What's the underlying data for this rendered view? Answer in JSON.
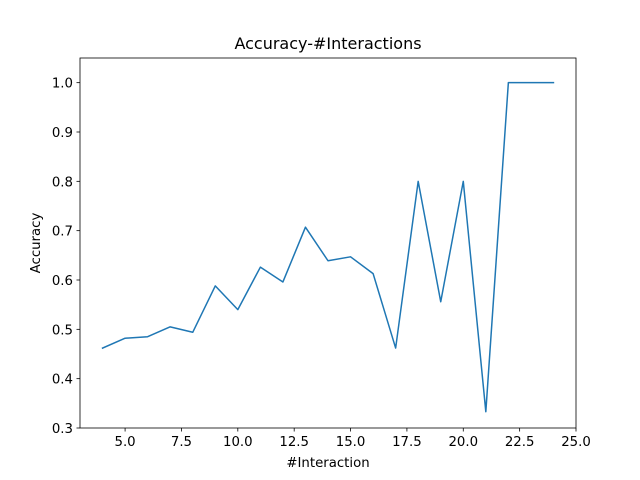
{
  "chart_data": {
    "type": "line",
    "title": "Accuracy-#Interactions",
    "xlabel": "#Interaction",
    "ylabel": "Accuracy",
    "xlim": [
      3.0,
      25.0
    ],
    "ylim": [
      0.3,
      1.05
    ],
    "x_ticks": [
      5.0,
      7.5,
      10.0,
      12.5,
      15.0,
      17.5,
      20.0,
      22.5,
      25.0
    ],
    "x_tick_labels": [
      "5.0",
      "7.5",
      "10.0",
      "12.5",
      "15.0",
      "17.5",
      "20.0",
      "22.5",
      "25.0"
    ],
    "y_ticks": [
      0.3,
      0.4,
      0.5,
      0.6,
      0.7,
      0.8,
      0.9,
      1.0
    ],
    "y_tick_labels": [
      "0.3",
      "0.4",
      "0.5",
      "0.6",
      "0.7",
      "0.8",
      "0.9",
      "1.0"
    ],
    "grid": false,
    "color": "#1f77b4",
    "series": [
      {
        "x": [
          4,
          5,
          6,
          7,
          8,
          9,
          10,
          11,
          12,
          13,
          14,
          15,
          16,
          17,
          18,
          19,
          20,
          21,
          22,
          23,
          24
        ],
        "values": [
          0.462,
          0.482,
          0.485,
          0.505,
          0.494,
          0.588,
          0.54,
          0.626,
          0.596,
          0.707,
          0.639,
          0.647,
          0.613,
          0.462,
          0.8,
          0.556,
          0.8,
          0.333,
          1.0,
          1.0,
          1.0
        ]
      }
    ]
  }
}
